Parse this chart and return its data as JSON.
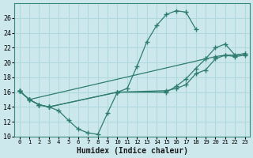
{
  "xlabel": "Humidex (Indice chaleur)",
  "bg_color": "#cce8ed",
  "grid_color": "#b0d8de",
  "line_color": "#2e7d6e",
  "ylim": [
    10,
    28
  ],
  "xlim": [
    -0.5,
    23.5
  ],
  "yticks": [
    10,
    12,
    14,
    16,
    18,
    20,
    22,
    24,
    26
  ],
  "xticks": [
    0,
    1,
    2,
    3,
    4,
    5,
    6,
    7,
    8,
    9,
    10,
    11,
    12,
    13,
    14,
    15,
    16,
    17,
    18,
    19,
    20,
    21,
    22,
    23
  ],
  "series": [
    {
      "x": [
        0,
        1,
        2,
        3,
        4,
        5,
        6,
        7,
        8,
        9,
        10,
        11,
        12,
        13,
        14,
        15,
        16,
        17,
        18
      ],
      "y": [
        16.2,
        15.0,
        14.3,
        14.0,
        13.5,
        12.2,
        11.0,
        10.5,
        10.3,
        13.2,
        16.0,
        16.5,
        19.5,
        22.8,
        25.0,
        26.5,
        27.0,
        26.8,
        24.5
      ]
    },
    {
      "x": [
        0,
        1,
        2,
        3,
        10,
        15,
        16,
        17,
        18,
        19,
        20,
        21,
        22,
        23
      ],
      "y": [
        16.2,
        15.0,
        14.3,
        14.0,
        16.0,
        16.2,
        16.5,
        17.0,
        18.5,
        19.0,
        20.5,
        21.0,
        21.0,
        21.2
      ]
    },
    {
      "x": [
        0,
        1,
        2,
        3,
        10,
        15,
        16,
        17,
        18,
        19,
        20,
        21,
        22,
        23
      ],
      "y": [
        16.2,
        15.0,
        14.3,
        14.0,
        16.0,
        16.0,
        16.8,
        17.8,
        19.2,
        20.5,
        22.0,
        22.5,
        21.0,
        21.2
      ]
    },
    {
      "x": [
        0,
        1,
        19,
        20,
        21,
        22,
        23
      ],
      "y": [
        16.2,
        15.0,
        20.5,
        20.8,
        21.0,
        20.8,
        21.0
      ]
    }
  ]
}
